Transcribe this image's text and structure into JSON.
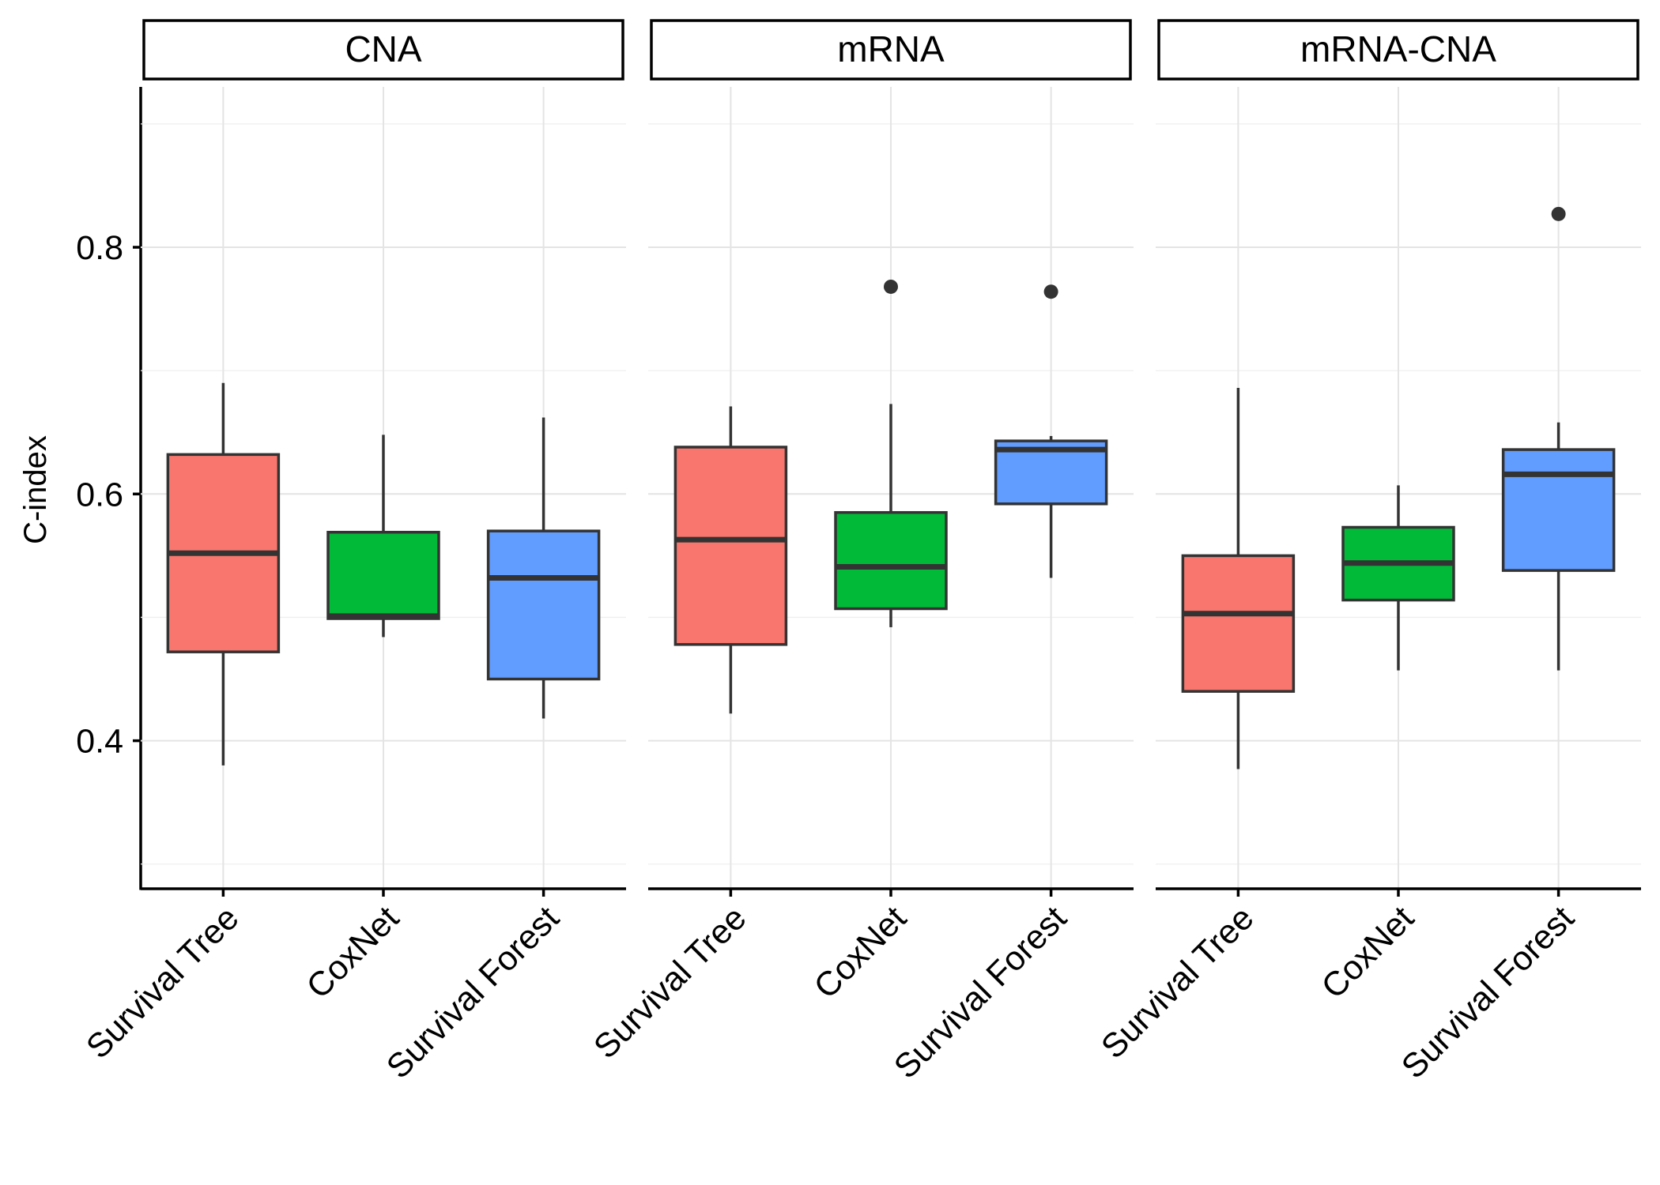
{
  "chart_data": {
    "type": "boxplot",
    "ylabel": "C-index",
    "ylim": [
      0.28,
      0.93
    ],
    "y_ticks": [
      0.4,
      0.6,
      0.8
    ],
    "y_tick_labels": [
      "0.4",
      "0.6",
      "0.8"
    ],
    "categories": [
      "Survival Tree",
      "CoxNet",
      "Survival Forest"
    ],
    "colors": {
      "Survival Tree": "#F8766D",
      "CoxNet": "#00BA38",
      "Survival Forest": "#619CFF"
    },
    "panels": [
      {
        "title": "CNA",
        "boxes": [
          {
            "category": "Survival Tree",
            "min": 0.38,
            "q1": 0.472,
            "median": 0.552,
            "q3": 0.632,
            "max": 0.69,
            "outliers": []
          },
          {
            "category": "CoxNet",
            "min": 0.484,
            "q1": 0.499,
            "median": 0.501,
            "q3": 0.569,
            "max": 0.648,
            "outliers": []
          },
          {
            "category": "Survival Forest",
            "min": 0.418,
            "q1": 0.45,
            "median": 0.532,
            "q3": 0.57,
            "max": 0.662,
            "outliers": []
          }
        ]
      },
      {
        "title": "mRNA",
        "boxes": [
          {
            "category": "Survival Tree",
            "min": 0.422,
            "q1": 0.478,
            "median": 0.563,
            "q3": 0.638,
            "max": 0.671,
            "outliers": []
          },
          {
            "category": "CoxNet",
            "min": 0.492,
            "q1": 0.507,
            "median": 0.541,
            "q3": 0.585,
            "max": 0.673,
            "outliers": [
              0.768
            ]
          },
          {
            "category": "Survival Forest",
            "min": 0.532,
            "q1": 0.592,
            "median": 0.636,
            "q3": 0.643,
            "max": 0.647,
            "outliers": [
              0.764
            ]
          }
        ]
      },
      {
        "title": "mRNA-CNA",
        "boxes": [
          {
            "category": "Survival Tree",
            "min": 0.377,
            "q1": 0.44,
            "median": 0.503,
            "q3": 0.55,
            "max": 0.686,
            "outliers": []
          },
          {
            "category": "CoxNet",
            "min": 0.457,
            "q1": 0.514,
            "median": 0.544,
            "q3": 0.573,
            "max": 0.607,
            "outliers": []
          },
          {
            "category": "Survival Forest",
            "min": 0.457,
            "q1": 0.538,
            "median": 0.616,
            "q3": 0.636,
            "max": 0.658,
            "outliers": [
              0.827
            ]
          }
        ]
      }
    ]
  }
}
